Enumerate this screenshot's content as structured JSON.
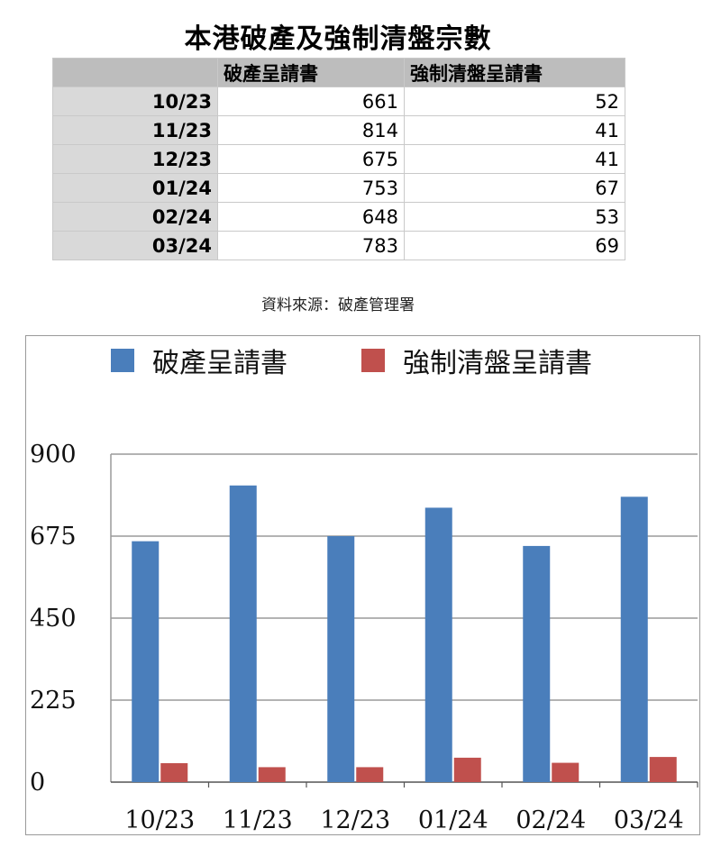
{
  "title": "本港破產及強制清盤宗數",
  "table": {
    "corner": "",
    "headers": [
      "破產呈請書",
      "強制清盤呈請書"
    ],
    "rows": [
      {
        "month": "10/23",
        "bankruptcy": "661",
        "winding_up": "52"
      },
      {
        "month": "11/23",
        "bankruptcy": "814",
        "winding_up": "41"
      },
      {
        "month": "12/23",
        "bankruptcy": "675",
        "winding_up": "41"
      },
      {
        "month": "01/24",
        "bankruptcy": "753",
        "winding_up": "67"
      },
      {
        "month": "02/24",
        "bankruptcy": "648",
        "winding_up": "53"
      },
      {
        "month": "03/24",
        "bankruptcy": "783",
        "winding_up": "69"
      }
    ]
  },
  "source": "資料來源：破產管理署",
  "chart_data": {
    "type": "bar",
    "title": "",
    "xlabel": "",
    "ylabel": "",
    "categories": [
      "10/23",
      "11/23",
      "12/23",
      "01/24",
      "02/24",
      "03/24"
    ],
    "series": [
      {
        "name": "破產呈請書",
        "color": "#4a7ebb",
        "values": [
          661,
          814,
          675,
          753,
          648,
          783
        ]
      },
      {
        "name": "強制清盤呈請書",
        "color": "#c0504d",
        "values": [
          52,
          41,
          41,
          67,
          53,
          69
        ]
      }
    ],
    "ylim": [
      0,
      900
    ],
    "yticks": [
      0,
      225,
      450,
      675,
      900
    ],
    "grid": true,
    "legend_position": "top"
  }
}
